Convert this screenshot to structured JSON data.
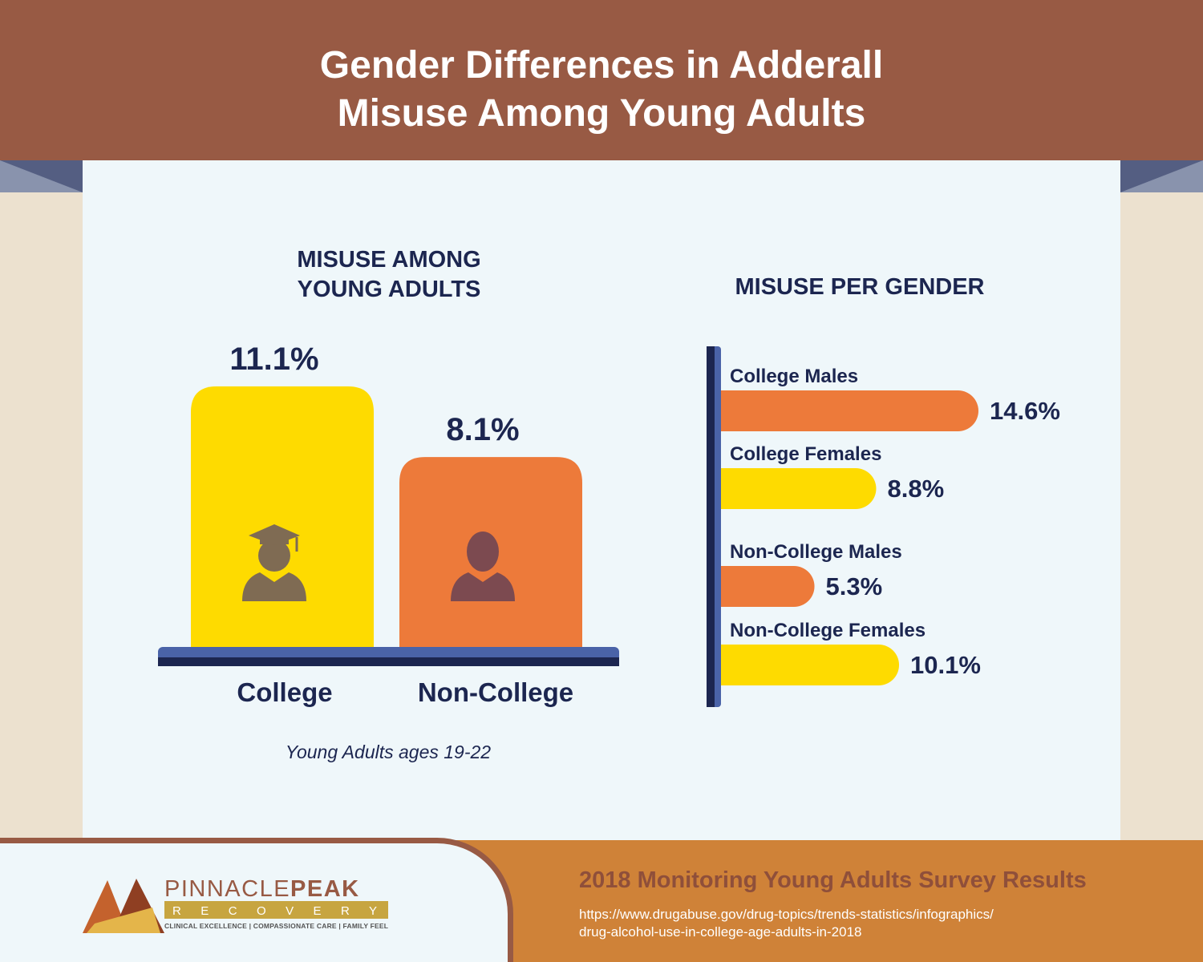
{
  "header": {
    "title_line1": "Gender Differences in Adderall",
    "title_line2": "Misuse Among Young Adults"
  },
  "colors": {
    "header": "#985a44",
    "panel": "#eff7fa",
    "navy": "#1c2650",
    "yellow": "#fedb00",
    "orange": "#ed7a3a",
    "footer": "#cf8238"
  },
  "chart_data": [
    {
      "type": "bar",
      "title_line1": "MISUSE AMONG",
      "title_line2": "YOUNG ADULTS",
      "categories": [
        "College",
        "Non-College"
      ],
      "values": [
        11.1,
        8.1
      ],
      "value_labels": [
        "11.1%",
        "8.1%"
      ],
      "colors": [
        "#fedb00",
        "#ed7a3a"
      ],
      "icons": [
        "graduate-icon",
        "person-icon"
      ],
      "note": "Young Adults ages 19-22"
    },
    {
      "type": "bar",
      "orientation": "horizontal",
      "title": "MISUSE PER GENDER",
      "categories": [
        "College Males",
        "College Females",
        "Non-College Males",
        "Non-College Females"
      ],
      "values": [
        14.6,
        8.8,
        5.3,
        10.1
      ],
      "value_labels": [
        "14.6%",
        "8.8%",
        "5.3%",
        "10.1%"
      ],
      "colors": [
        "#ed7a3a",
        "#fedb00",
        "#ed7a3a",
        "#fedb00"
      ]
    }
  ],
  "footer": {
    "logo_text_pinnacle": "PINNACLE",
    "logo_text_peak": "PEAK",
    "logo_text_recovery": "R E C O V E R Y",
    "logo_tagline": "CLINICAL EXCELLENCE | COMPASSIONATE CARE | FAMILY FEEL",
    "survey": "2018 Monitoring Young Adults Survey Results",
    "url_line1": "https://www.drugabuse.gov/drug-topics/trends-statistics/infographics/",
    "url_line2": "drug-alcohol-use-in-college-age-adults-in-2018"
  }
}
